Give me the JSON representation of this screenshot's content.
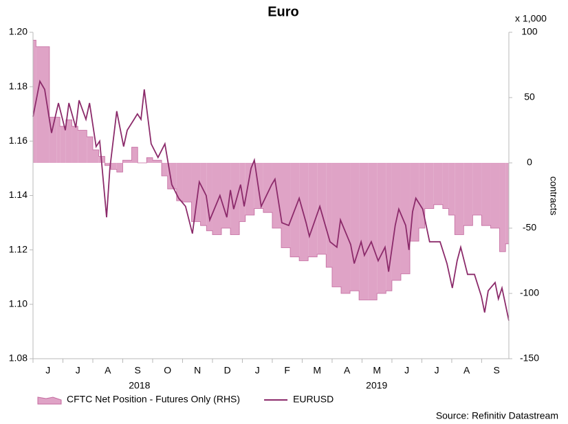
{
  "chart_data": {
    "type": "line",
    "title": "Euro",
    "y2_unit_label": "x 1,000",
    "y2_label": "contracts",
    "source": "Source: Refinitiv Datastream",
    "months": [
      "J",
      "J",
      "A",
      "S",
      "O",
      "N",
      "D",
      "J",
      "F",
      "M",
      "A",
      "M",
      "J",
      "J",
      "A",
      "S"
    ],
    "years": [
      {
        "x": 3.56,
        "label": "2018"
      },
      {
        "x": 11.49,
        "label": "2019"
      }
    ],
    "xlim": [
      0,
      15.91
    ],
    "xticks": [
      0,
      1,
      2,
      3,
      4,
      5,
      6,
      7,
      8,
      9,
      10,
      11,
      12,
      13,
      14,
      15
    ],
    "ylim": [
      1.08,
      1.2
    ],
    "yticks": [
      {
        "value": 1.08,
        "label": "1.08"
      },
      {
        "value": 1.1,
        "label": "1.10"
      },
      {
        "value": 1.12,
        "label": "1.12"
      },
      {
        "value": 1.14,
        "label": "1.14"
      },
      {
        "value": 1.16,
        "label": "1.16"
      },
      {
        "value": 1.18,
        "label": "1.18"
      },
      {
        "value": 1.2,
        "label": "1.20"
      }
    ],
    "y2lim": [
      -150,
      100
    ],
    "y2ticks": [
      -150,
      -100,
      -50,
      0,
      50,
      100
    ],
    "series": [
      {
        "name": "CFTC Net Position - Futures Only (RHS)",
        "type": "area",
        "axis": "y2",
        "color": "#dfa3c6",
        "x": [
          0.0,
          0.1,
          0.55,
          0.8,
          0.9,
          1.1,
          1.3,
          1.5,
          1.8,
          2.0,
          2.2,
          2.4,
          2.6,
          2.8,
          3.0,
          3.3,
          3.5,
          3.8,
          4.0,
          4.3,
          4.5,
          4.8,
          5.0,
          5.3,
          5.6,
          5.8,
          6.0,
          6.3,
          6.6,
          6.9,
          7.1,
          7.4,
          7.7,
          8.0,
          8.3,
          8.6,
          8.9,
          9.2,
          9.5,
          9.8,
          10.0,
          10.3,
          10.6,
          10.9,
          11.2,
          11.5,
          11.8,
          12.0,
          12.3,
          12.6,
          12.9,
          13.1,
          13.4,
          13.7,
          13.9,
          14.1,
          14.4,
          14.7,
          15.0,
          15.3,
          15.6,
          15.8
        ],
        "values": [
          94,
          89,
          35,
          35,
          28,
          33,
          28,
          25,
          20,
          10,
          5,
          -2,
          -5,
          -7,
          2,
          12,
          0,
          4,
          2,
          -10,
          -20,
          -29,
          -30,
          -45,
          -48,
          -52,
          -55,
          -50,
          -55,
          -45,
          -40,
          -35,
          -38,
          -50,
          -65,
          -72,
          -75,
          -72,
          -70,
          -80,
          -95,
          -100,
          -98,
          -105,
          -105,
          -100,
          -98,
          -90,
          -85,
          -60,
          -50,
          -35,
          -32,
          -35,
          -40,
          -55,
          -48,
          -40,
          -48,
          -50,
          -68,
          -62
        ]
      },
      {
        "name": "EURUSD",
        "type": "line",
        "color": "#8b2a6a",
        "x": [
          0.0,
          0.23,
          0.39,
          0.62,
          0.85,
          1.08,
          1.2,
          1.43,
          1.54,
          1.77,
          1.89,
          2.11,
          2.23,
          2.46,
          2.57,
          2.8,
          3.03,
          3.15,
          3.38,
          3.49,
          3.61,
          3.72,
          3.95,
          4.18,
          4.41,
          4.64,
          4.87,
          5.1,
          5.33,
          5.56,
          5.79,
          5.91,
          6.25,
          6.48,
          6.6,
          6.71,
          6.94,
          7.06,
          7.29,
          7.4,
          7.63,
          7.98,
          8.09,
          8.32,
          8.55,
          8.9,
          9.13,
          9.24,
          9.59,
          9.93,
          10.16,
          10.28,
          10.62,
          10.74,
          10.97,
          11.08,
          11.31,
          11.54,
          11.77,
          11.89,
          12.11,
          12.23,
          12.46,
          12.57,
          12.69,
          12.8,
          13.03,
          13.26,
          13.61,
          13.84,
          14.02,
          14.18,
          14.3,
          14.53,
          14.76,
          14.99,
          15.1,
          15.22,
          15.45,
          15.56,
          15.68,
          15.91
        ],
        "values": [
          1.169,
          1.182,
          1.179,
          1.163,
          1.174,
          1.164,
          1.174,
          1.165,
          1.175,
          1.168,
          1.174,
          1.158,
          1.16,
          1.132,
          1.15,
          1.171,
          1.158,
          1.164,
          1.168,
          1.17,
          1.168,
          1.179,
          1.159,
          1.154,
          1.159,
          1.144,
          1.139,
          1.136,
          1.126,
          1.145,
          1.14,
          1.131,
          1.14,
          1.132,
          1.142,
          1.135,
          1.144,
          1.136,
          1.15,
          1.153,
          1.136,
          1.144,
          1.146,
          1.13,
          1.129,
          1.139,
          1.13,
          1.125,
          1.136,
          1.123,
          1.121,
          1.131,
          1.122,
          1.115,
          1.123,
          1.118,
          1.123,
          1.116,
          1.121,
          1.112,
          1.129,
          1.135,
          1.129,
          1.12,
          1.134,
          1.139,
          1.135,
          1.123,
          1.123,
          1.115,
          1.106,
          1.116,
          1.121,
          1.111,
          1.111,
          1.103,
          1.097,
          1.105,
          1.108,
          1.102,
          1.106,
          1.094
        ]
      }
    ]
  }
}
